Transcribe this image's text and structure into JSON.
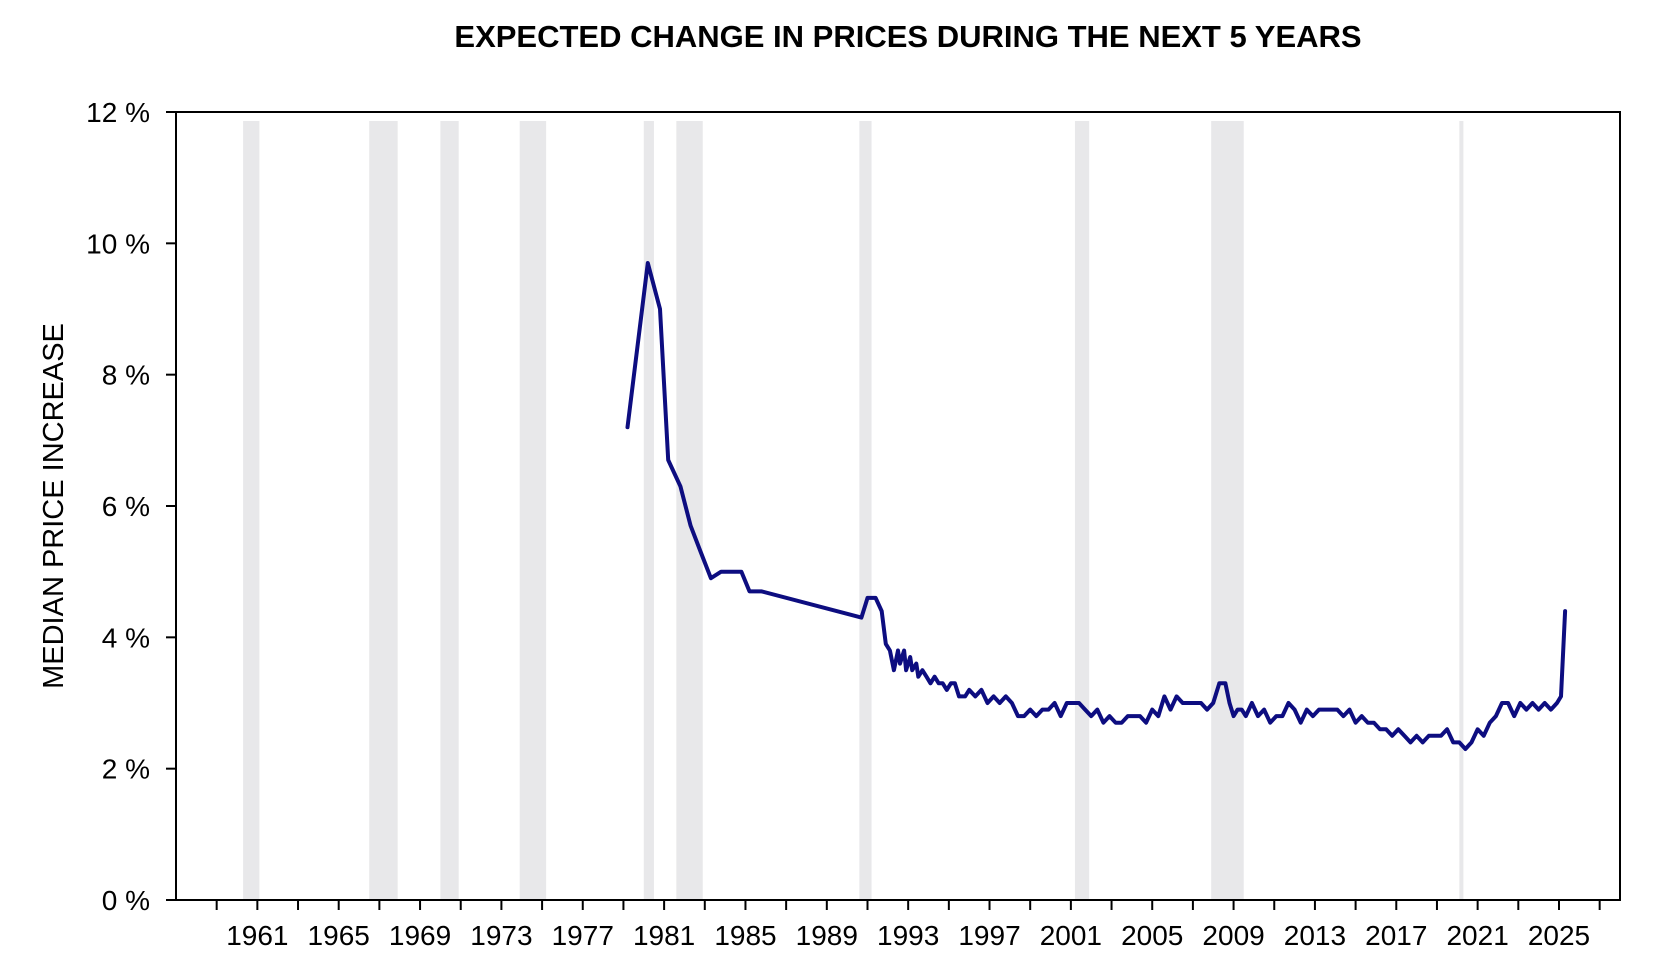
{
  "chart_data": {
    "type": "line",
    "title": "EXPECTED CHANGE IN PRICES DURING THE NEXT 5 YEARS",
    "xlabel": "",
    "ylabel": "MEDIAN PRICE INCREASE",
    "xlim": [
      1957,
      2028
    ],
    "ylim": [
      0,
      12
    ],
    "x_ticks": [
      1961,
      1965,
      1969,
      1973,
      1977,
      1981,
      1985,
      1989,
      1993,
      1997,
      2001,
      2005,
      2009,
      2013,
      2017,
      2021,
      2025
    ],
    "x_tick_labels": [
      "1961",
      "1965",
      "1969",
      "1973",
      "1977",
      "1981",
      "1985",
      "1989",
      "1993",
      "1997",
      "2001",
      "2005",
      "2009",
      "2013",
      "2017",
      "2021",
      "2025"
    ],
    "y_ticks": [
      0,
      2,
      4,
      6,
      8,
      10,
      12
    ],
    "y_tick_labels": [
      "0 %",
      "2 %",
      "4 %",
      "6 %",
      "8 %",
      "10 %",
      "12 %"
    ],
    "grid": false,
    "legend": "none",
    "colors": {
      "series": "#0d0d80",
      "recession": "#e8e8ea",
      "axis": "#000000"
    },
    "recessions": [
      [
        1960.3,
        1961.1
      ],
      [
        1966.5,
        1967.9
      ],
      [
        1970.0,
        1970.9
      ],
      [
        1973.9,
        1975.2
      ],
      [
        1980.0,
        1980.5
      ],
      [
        1981.6,
        1982.9
      ],
      [
        1990.6,
        1991.2
      ],
      [
        2001.2,
        2001.9
      ],
      [
        2007.9,
        2009.5
      ],
      [
        2020.1,
        2020.3
      ]
    ],
    "series": [
      {
        "x": [
          1979.2,
          1980.2,
          1980.8,
          1981.2,
          1981.8,
          1982.3,
          1982.8,
          1983.3,
          1983.8,
          1984.5,
          1984.8,
          1985.2,
          1985.8,
          1990.7,
          1990.9,
          1991.0,
          1991.2,
          1991.4,
          1991.7,
          1991.9,
          1992.1,
          1992.3,
          1992.5,
          1992.6,
          1992.8,
          1992.9,
          1993.1,
          1993.2,
          1993.4,
          1993.5,
          1993.7,
          1993.9,
          1994.1,
          1994.3,
          1994.5,
          1994.7,
          1994.9,
          1995.1,
          1995.3,
          1995.5,
          1995.8,
          1996.0,
          1996.3,
          1996.6,
          1996.9,
          1997.2,
          1997.5,
          1997.8,
          1998.1,
          1998.4,
          1998.7,
          1999.0,
          1999.3,
          1999.6,
          1999.9,
          2000.2,
          2000.5,
          2000.8,
          2001.1,
          2001.4,
          2001.7,
          2002.0,
          2002.3,
          2002.6,
          2002.9,
          2003.2,
          2003.5,
          2003.8,
          2004.1,
          2004.4,
          2004.7,
          2005.0,
          2005.3,
          2005.6,
          2005.9,
          2006.2,
          2006.5,
          2006.8,
          2007.1,
          2007.4,
          2007.7,
          2008.0,
          2008.3,
          2008.6,
          2008.8,
          2009.0,
          2009.2,
          2009.4,
          2009.6,
          2009.9,
          2010.2,
          2010.5,
          2010.8,
          2011.1,
          2011.4,
          2011.7,
          2012.0,
          2012.3,
          2012.6,
          2012.9,
          2013.2,
          2013.5,
          2013.8,
          2014.1,
          2014.4,
          2014.7,
          2015.0,
          2015.3,
          2015.6,
          2015.9,
          2016.2,
          2016.5,
          2016.8,
          2017.1,
          2017.4,
          2017.7,
          2018.0,
          2018.3,
          2018.6,
          2018.9,
          2019.2,
          2019.5,
          2019.8,
          2020.1,
          2020.4,
          2020.7,
          2021.0,
          2021.3,
          2021.6,
          2021.9,
          2022.2,
          2022.5,
          2022.8,
          2023.1,
          2023.4,
          2023.7,
          2024.0,
          2024.3,
          2024.6,
          2024.9,
          2025.1,
          2025.3
        ],
        "y": [
          7.2,
          9.7,
          9.0,
          6.7,
          6.3,
          5.7,
          5.3,
          4.9,
          5.0,
          5.0,
          5.0,
          4.7,
          4.7,
          4.3,
          4.5,
          4.6,
          4.6,
          4.6,
          4.4,
          3.9,
          3.8,
          3.5,
          3.8,
          3.6,
          3.8,
          3.5,
          3.7,
          3.5,
          3.6,
          3.4,
          3.5,
          3.4,
          3.3,
          3.4,
          3.3,
          3.3,
          3.2,
          3.3,
          3.3,
          3.1,
          3.1,
          3.2,
          3.1,
          3.2,
          3.0,
          3.1,
          3.0,
          3.1,
          3.0,
          2.8,
          2.8,
          2.9,
          2.8,
          2.9,
          2.9,
          3.0,
          2.8,
          3.0,
          3.0,
          3.0,
          2.9,
          2.8,
          2.9,
          2.7,
          2.8,
          2.7,
          2.7,
          2.8,
          2.8,
          2.8,
          2.7,
          2.9,
          2.8,
          3.1,
          2.9,
          3.1,
          3.0,
          3.0,
          3.0,
          3.0,
          2.9,
          3.0,
          3.3,
          3.3,
          3.0,
          2.8,
          2.9,
          2.9,
          2.8,
          3.0,
          2.8,
          2.9,
          2.7,
          2.8,
          2.8,
          3.0,
          2.9,
          2.7,
          2.9,
          2.8,
          2.9,
          2.9,
          2.9,
          2.9,
          2.8,
          2.9,
          2.7,
          2.8,
          2.7,
          2.7,
          2.6,
          2.6,
          2.5,
          2.6,
          2.5,
          2.4,
          2.5,
          2.4,
          2.5,
          2.5,
          2.5,
          2.6,
          2.4,
          2.4,
          2.3,
          2.4,
          2.6,
          2.5,
          2.7,
          2.8,
          3.0,
          3.0,
          2.8,
          3.0,
          2.9,
          3.0,
          2.9,
          3.0,
          2.9,
          3.0,
          3.1,
          4.4
        ]
      }
    ]
  }
}
